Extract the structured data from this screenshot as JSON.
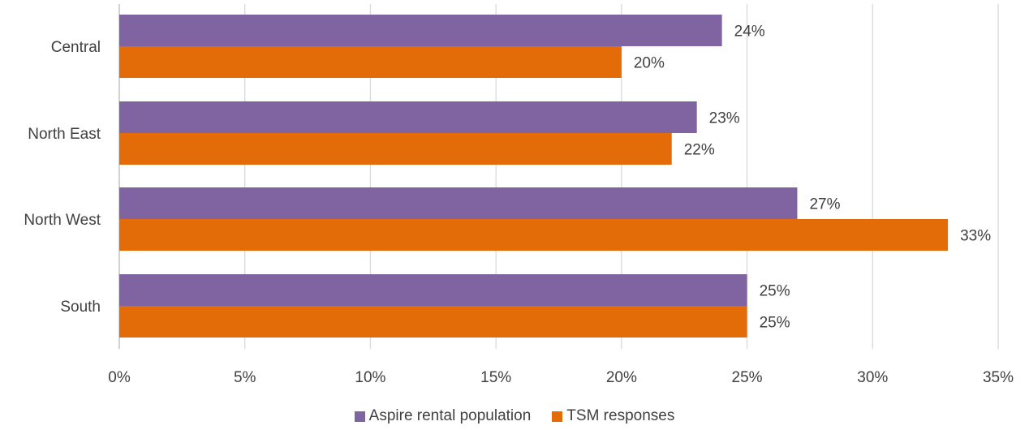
{
  "chart_data": {
    "type": "bar",
    "orientation": "horizontal",
    "categories": [
      "Central",
      "North East",
      "North West",
      "South"
    ],
    "series": [
      {
        "name": "Aspire rental population",
        "values": [
          24,
          23,
          27,
          25
        ],
        "labels": [
          "24%",
          "23%",
          "27%",
          "25%"
        ],
        "color": "#8064A2"
      },
      {
        "name": "TSM responses",
        "values": [
          20,
          22,
          33,
          25
        ],
        "labels": [
          "20%",
          "22%",
          "33%",
          "25%"
        ],
        "color": "#E36C09"
      }
    ],
    "xlim": [
      0,
      35
    ],
    "x_ticks": [
      0,
      5,
      10,
      15,
      20,
      25,
      30,
      35
    ],
    "x_tick_labels": [
      "0%",
      "5%",
      "10%",
      "15%",
      "20%",
      "25%",
      "30%",
      "35%"
    ],
    "grid": true,
    "legend_position": "bottom",
    "title": "",
    "xlabel": "",
    "ylabel": ""
  }
}
